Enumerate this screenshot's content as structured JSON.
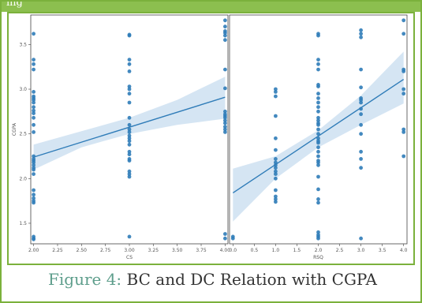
{
  "header_fragment": "ing",
  "caption": {
    "label": "Figure 4:",
    "text": " BC and DC Relation with CGPA"
  },
  "colors": {
    "frame": "#7bb13c",
    "point": "#2f7cb8",
    "line": "#2f7cb8",
    "band": "#c7dcef",
    "caption_label": "#5e9e8c"
  },
  "chart_data": [
    {
      "type": "scatter",
      "title": "",
      "xlabel": "CS",
      "ylabel": "CGPA",
      "xlim": [
        1.97,
        4.03
      ],
      "ylim": [
        1.27,
        3.83
      ],
      "xticks": [
        "2.00",
        "2.25",
        "2.50",
        "2.75",
        "3.00",
        "3.25",
        "3.50",
        "3.75",
        "4.00"
      ],
      "yticks": [
        "1.5",
        "2.0",
        "2.5",
        "3.0",
        "3.5"
      ],
      "xtick_values": [
        2.0,
        2.25,
        2.5,
        2.75,
        3.0,
        3.25,
        3.5,
        3.75,
        4.0
      ],
      "ytick_values": [
        1.5,
        2.0,
        2.5,
        3.0,
        3.5
      ],
      "points": {
        "x": [
          2,
          2,
          2,
          2,
          2,
          2,
          2,
          2,
          2,
          2,
          2,
          2,
          2,
          2,
          2,
          2,
          2,
          2,
          2,
          2,
          2,
          2,
          2,
          2,
          2,
          2,
          2,
          2,
          2,
          2,
          2,
          3,
          3,
          3,
          3,
          3,
          3,
          3,
          3,
          3,
          3,
          3,
          3,
          3,
          3,
          3,
          3,
          3,
          3,
          3,
          3,
          3,
          3,
          3,
          3,
          3,
          4,
          4,
          4,
          4,
          4,
          4,
          4,
          4,
          4,
          4,
          4,
          4,
          4,
          4,
          4,
          4,
          4,
          4,
          4
        ],
        "y": [
          3.62,
          3.33,
          3.28,
          3.22,
          2.97,
          2.92,
          2.88,
          2.85,
          2.8,
          2.76,
          2.73,
          2.68,
          2.52,
          2.25,
          2.22,
          2.2,
          2.18,
          2.15,
          2.12,
          2.1,
          1.87,
          1.82,
          1.78,
          1.75,
          1.73,
          1.35,
          1.33,
          1.32,
          2.05,
          2.9,
          2.6,
          3.6,
          3.61,
          3.33,
          3.28,
          3.2,
          3.03,
          3.0,
          2.95,
          2.85,
          2.68,
          2.6,
          2.55,
          2.52,
          2.48,
          2.42,
          2.38,
          2.3,
          2.27,
          2.22,
          2.2,
          2.08,
          2.05,
          2.02,
          1.35,
          2.45,
          3.77,
          3.7,
          3.65,
          3.6,
          3.55,
          3.22,
          3.01,
          2.75,
          2.72,
          2.68,
          2.65,
          2.62,
          2.58,
          2.55,
          2.52,
          1.38,
          1.33,
          2.7,
          3.63
        ]
      },
      "regression": {
        "x": [
          2.0,
          4.0
        ],
        "y": [
          2.24,
          2.91
        ]
      },
      "ci_band": {
        "x": [
          2.0,
          2.5,
          3.0,
          3.5,
          4.0
        ],
        "lower": [
          2.1,
          2.35,
          2.5,
          2.6,
          2.67
        ],
        "upper": [
          2.38,
          2.53,
          2.68,
          2.88,
          3.14
        ]
      }
    },
    {
      "type": "scatter",
      "title": "",
      "xlabel": "RSQ",
      "ylabel": "",
      "xlim": [
        -0.08,
        4.08
      ],
      "ylim": [
        1.27,
        3.83
      ],
      "xticks": [
        "0.0",
        "0.5",
        "1.0",
        "1.5",
        "2.0",
        "2.5",
        "3.0",
        "3.5",
        "4.0"
      ],
      "xtick_values": [
        0.0,
        0.5,
        1.0,
        1.5,
        2.0,
        2.5,
        3.0,
        3.5,
        4.0
      ],
      "points": {
        "x": [
          0,
          0,
          1,
          1,
          1,
          1,
          1,
          1,
          1,
          1,
          1,
          1,
          1,
          1,
          1,
          1,
          1,
          1,
          1,
          2,
          2,
          2,
          2,
          2,
          2,
          2,
          2,
          2,
          2,
          2,
          2,
          2,
          2,
          2,
          2,
          2,
          2,
          2,
          2,
          2,
          2,
          2,
          2,
          2,
          2,
          2,
          2,
          2,
          2,
          2,
          2,
          2,
          2,
          2,
          3,
          3,
          3,
          3,
          3,
          3,
          3,
          3,
          3,
          3,
          3,
          3,
          3,
          3,
          3,
          3,
          4,
          4,
          4,
          4,
          4,
          4,
          4,
          4,
          4
        ],
        "y": [
          1.35,
          1.33,
          3.0,
          2.97,
          2.92,
          2.7,
          2.45,
          2.32,
          2.22,
          2.18,
          2.15,
          2.12,
          2.08,
          2.05,
          2.0,
          1.87,
          1.8,
          1.77,
          1.74,
          3.62,
          3.6,
          3.33,
          3.28,
          3.22,
          3.03,
          2.95,
          2.9,
          2.85,
          2.8,
          2.75,
          2.68,
          2.6,
          2.55,
          2.5,
          2.45,
          2.4,
          2.35,
          2.3,
          2.25,
          2.2,
          2.15,
          2.02,
          1.88,
          1.77,
          1.73,
          1.4,
          1.37,
          1.35,
          1.33,
          3.05,
          2.65,
          2.62,
          2.42,
          2.18,
          3.66,
          3.62,
          3.58,
          3.22,
          3.02,
          2.9,
          2.85,
          2.78,
          2.72,
          2.5,
          2.3,
          2.22,
          2.12,
          1.33,
          2.88,
          2.6,
          3.77,
          3.62,
          3.22,
          3.2,
          2.55,
          2.52,
          2.25,
          3.0,
          2.95
        ]
      },
      "regression": {
        "x": [
          0.0,
          4.0
        ],
        "y": [
          1.84,
          3.11
        ]
      },
      "ci_band": {
        "x": [
          0.0,
          1.0,
          2.0,
          3.0,
          4.0
        ],
        "lower": [
          1.52,
          2.0,
          2.35,
          2.6,
          2.84
        ],
        "upper": [
          2.11,
          2.25,
          2.54,
          2.93,
          3.42
        ]
      }
    }
  ]
}
